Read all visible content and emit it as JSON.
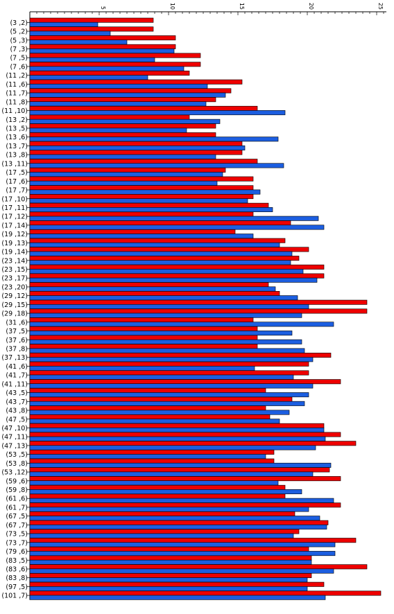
{
  "chart_data": {
    "type": "bar",
    "orientation": "horizontal",
    "x_ticks": [
      "5",
      "10",
      "15",
      "20",
      "25"
    ],
    "xlim": [
      0,
      25.5
    ],
    "x_axis_position": "top",
    "grid": false,
    "colors": [
      "#ee0000",
      "#1c5ee0"
    ],
    "categories": [
      "(3 ,2)",
      "(5 ,2)",
      "(5 ,3)",
      "(7 ,3)",
      "(7 ,5)",
      "(7 ,6)",
      "(11 ,2)",
      "(11 ,6)",
      "(11 ,7)",
      "(11 ,8)",
      "(11 ,10)",
      "(13 ,2)",
      "(13 ,5)",
      "(13 ,6)",
      "(13 ,7)",
      "(13 ,8)",
      "(13 ,11)",
      "(17 ,5)",
      "(17 ,6)",
      "(17 ,7)",
      "(17 ,10)",
      "(17 ,11)",
      "(17 ,12)",
      "(17 ,14)",
      "(19 ,12)",
      "(19 ,13)",
      "(19 ,14)",
      "(23 ,14)",
      "(23 ,15)",
      "(23 ,17)",
      "(23 ,20)",
      "(29 ,12)",
      "(29 ,15)",
      "(29 ,18)",
      "(31 ,6)",
      "(37 ,5)",
      "(37 ,6)",
      "(37 ,8)",
      "(37 ,13)",
      "(41 ,6)",
      "(41 ,7)",
      "(41 ,11)",
      "(43 ,5)",
      "(43 ,7)",
      "(43 ,8)",
      "(47 ,5)",
      "(47 ,10)",
      "(47 ,11)",
      "(47 ,13)",
      "(53 ,5)",
      "(53 ,8)",
      "(53 ,12)",
      "(59 ,6)",
      "(59 ,8)",
      "(61 ,6)",
      "(61 ,7)",
      "(67 ,5)",
      "(67 ,7)",
      "(73 ,5)",
      "(73 ,7)",
      "(79 ,6)",
      "(83 ,5)",
      "(83 ,6)",
      "(83 ,8)",
      "(97 ,5)",
      "(101 ,7)"
    ],
    "series": [
      {
        "values": [
          8.9,
          8.9,
          10.5,
          10.5,
          12.3,
          12.3,
          11.5,
          15.3,
          14.5,
          13.4,
          16.4,
          11.5,
          13.4,
          13.4,
          15.3,
          15.3,
          16.4,
          14.1,
          16.1,
          16.1,
          16.1,
          17.2,
          16.1,
          18.8,
          14.8,
          18.4,
          20.1,
          19.4,
          21.2,
          21.2,
          17.2,
          18.0,
          24.3,
          24.3,
          16.1,
          16.4,
          16.4,
          16.4,
          21.7,
          20.1,
          20.1,
          22.4,
          17.0,
          18.9,
          17.0,
          17.3,
          21.2,
          22.4,
          23.5,
          17.6,
          17.6,
          21.6,
          22.4,
          18.4,
          18.4,
          22.4,
          19.1,
          21.5,
          19.4,
          23.5,
          20.1,
          20.3,
          24.3,
          20.3,
          21.2,
          25.3
        ]
      },
      {
        "values": [
          4.9,
          5.8,
          7.0,
          10.4,
          9.0,
          11.1,
          8.5,
          12.8,
          14.1,
          12.7,
          18.4,
          13.7,
          11.3,
          17.9,
          15.5,
          13.4,
          18.3,
          13.9,
          13.5,
          16.6,
          15.7,
          17.5,
          20.8,
          21.2,
          16.1,
          18.0,
          18.9,
          18.8,
          19.7,
          20.7,
          17.7,
          19.3,
          20.1,
          19.6,
          21.9,
          18.9,
          19.6,
          19.8,
          20.4,
          16.2,
          19.0,
          20.4,
          20.1,
          19.8,
          18.7,
          18.0,
          21.2,
          21.3,
          20.6,
          17.0,
          21.7,
          20.4,
          17.9,
          19.6,
          21.9,
          20.1,
          20.9,
          21.4,
          19.0,
          22.0,
          22.0,
          20.3,
          21.9,
          20.0,
          20.0,
          21.3
        ]
      }
    ]
  }
}
